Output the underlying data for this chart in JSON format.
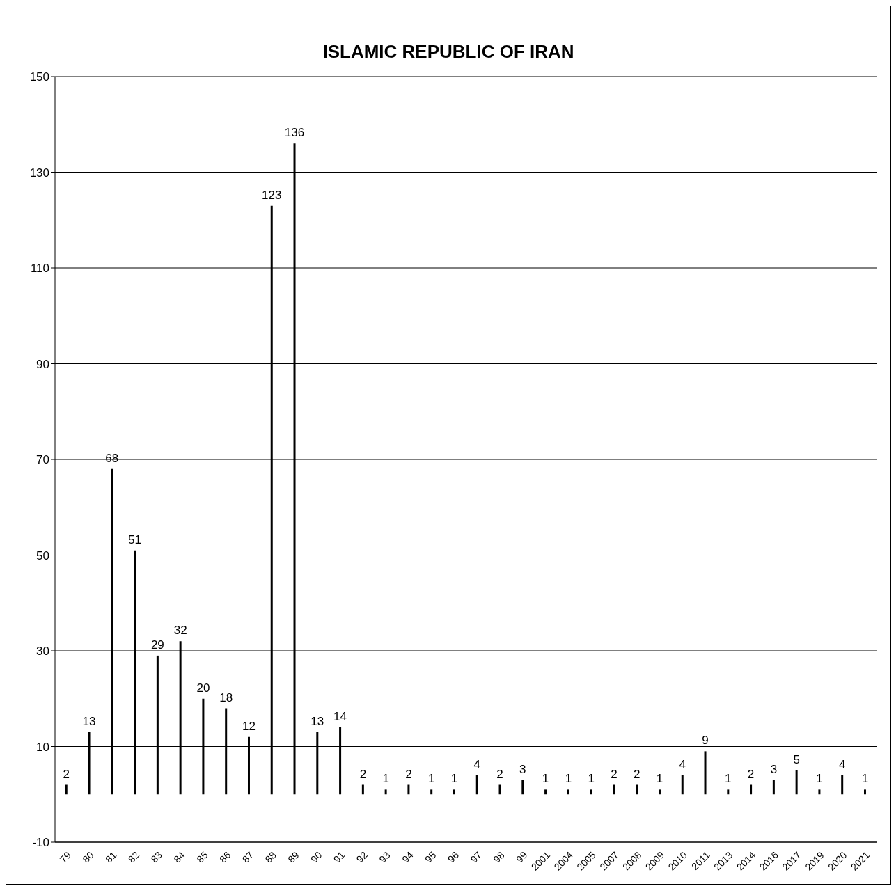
{
  "chart_data": {
    "type": "bar",
    "title": "ISLAMIC REPUBLIC OF IRAN",
    "categories": [
      "79",
      "80",
      "81",
      "82",
      "83",
      "84",
      "85",
      "86",
      "87",
      "88",
      "89",
      "90",
      "91",
      "92",
      "93",
      "94",
      "95",
      "96",
      "97",
      "98",
      "99",
      "2001",
      "2004",
      "2005",
      "2007",
      "2008",
      "2009",
      "2010",
      "2011",
      "2013",
      "2014",
      "2016",
      "2017",
      "2019",
      "2020",
      "2021"
    ],
    "values": [
      2,
      13,
      68,
      51,
      29,
      32,
      20,
      18,
      12,
      123,
      136,
      13,
      14,
      2,
      1,
      2,
      1,
      1,
      4,
      2,
      3,
      1,
      1,
      1,
      2,
      2,
      1,
      4,
      9,
      1,
      2,
      3,
      5,
      1,
      4,
      1
    ],
    "color": "#000000",
    "ylim": [
      -10,
      150
    ],
    "yticks": [
      -10,
      10,
      30,
      50,
      70,
      90,
      110,
      130,
      150
    ],
    "grid": "y",
    "data_labels": true
  }
}
